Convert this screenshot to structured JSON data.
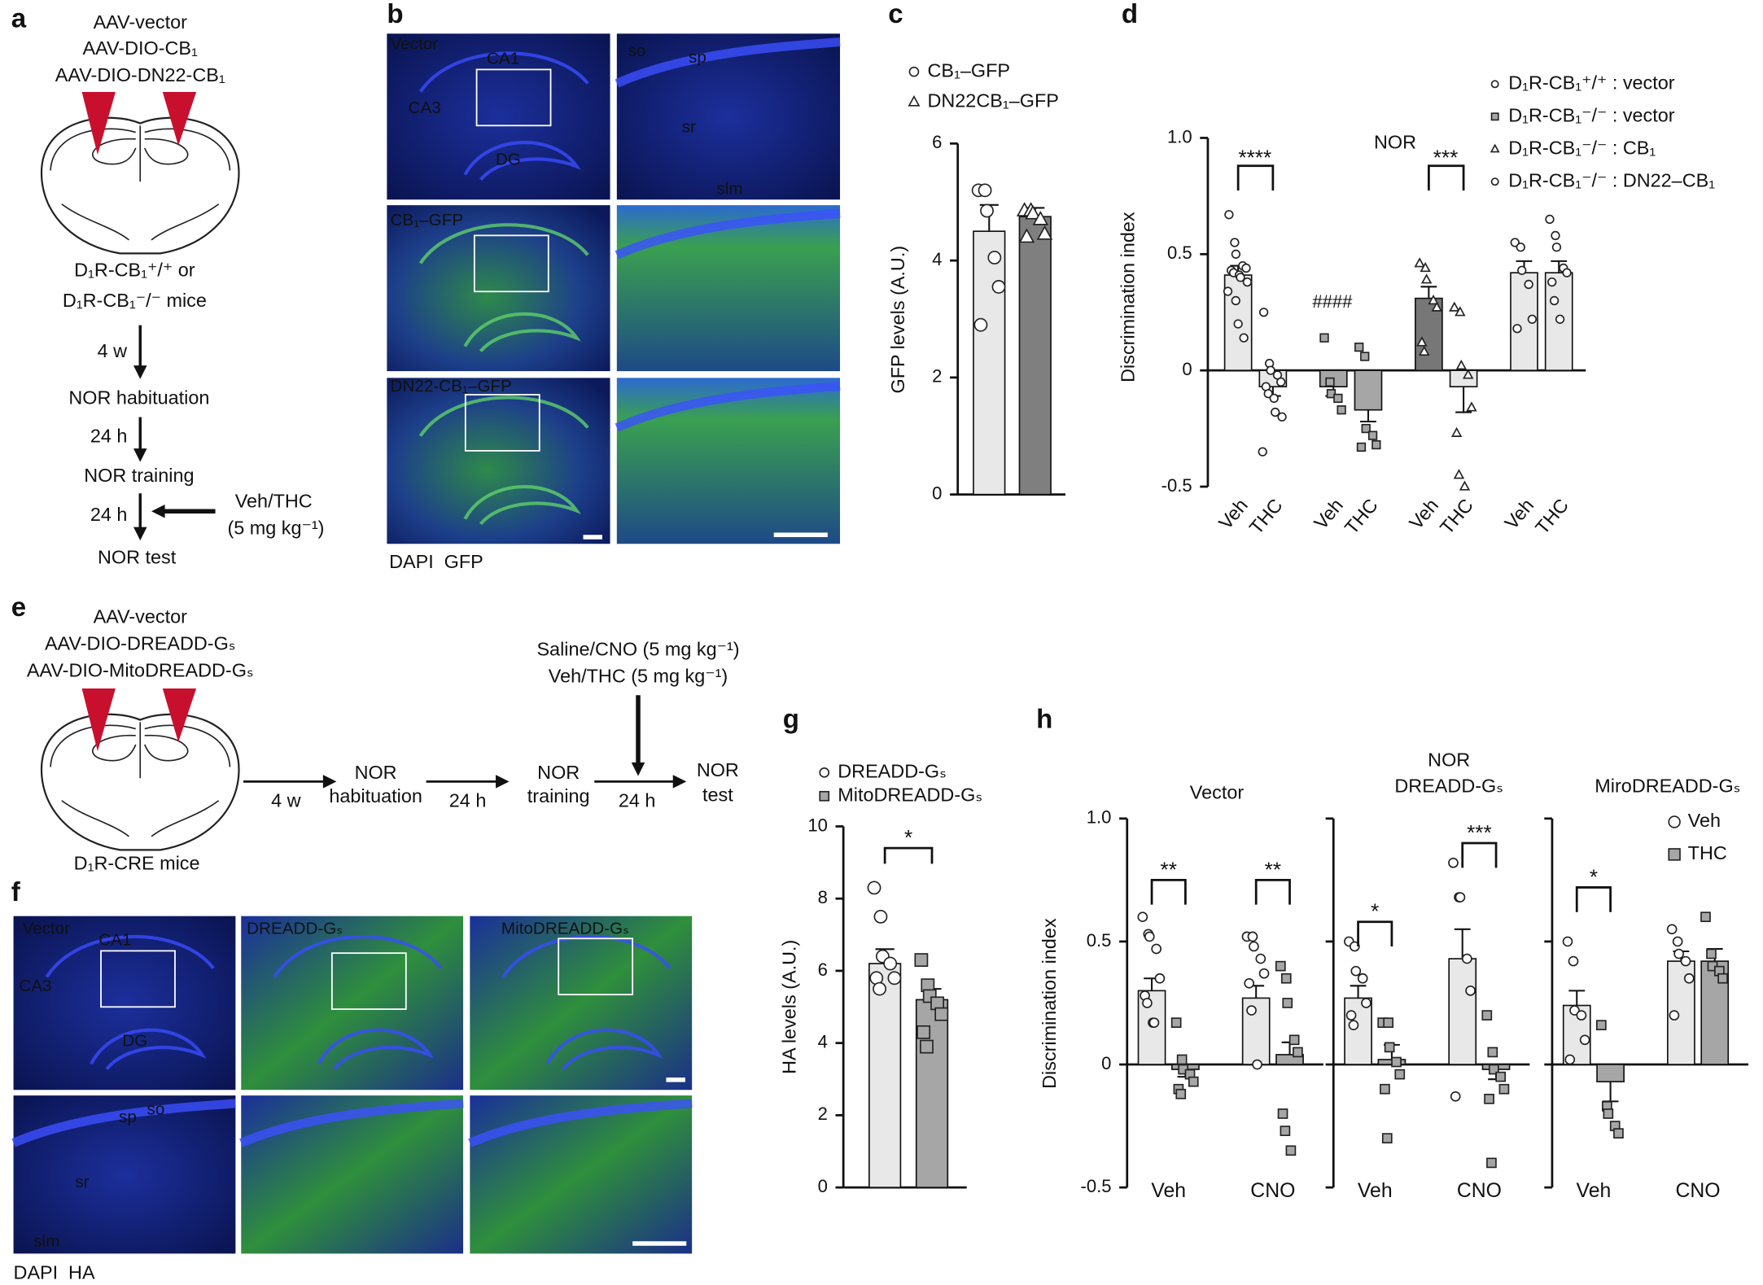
{
  "figure": {
    "panel_labels": [
      "a",
      "b",
      "c",
      "d",
      "e",
      "f",
      "g",
      "h"
    ],
    "a": {
      "vectors": [
        "AAV-vector",
        "AAV-DIO-CB₁",
        "AAV-DIO-DN22-CB₁"
      ],
      "mice": [
        "D₁R-CB₁⁺/⁺ or",
        "D₁R-CB₁⁻/⁻ mice"
      ],
      "steps": [
        "NOR habituation",
        "NOR training",
        "NOR test"
      ],
      "intervals": [
        "4 w",
        "24 h",
        "24 h"
      ],
      "treatment": [
        "Veh/THC",
        "(5 mg kg⁻¹)"
      ]
    },
    "b": {
      "labels": [
        "Vector",
        "CA1",
        "CA3",
        "DG",
        "so",
        "sp",
        "sr",
        "slm",
        "CB₁–GFP",
        "DN22-CB₁–GFP"
      ],
      "stain": [
        "DAPI",
        "GFP"
      ]
    },
    "e": {
      "vectors": [
        "AAV-vector",
        "AAV-DIO-DREADD-Gₛ",
        "AAV-DIO-MitoDREADD-Gₛ"
      ],
      "mice": "D₁R-CRE mice",
      "treatment": [
        "Saline/CNO (5 mg kg⁻¹)",
        "Veh/THC (5 mg kg⁻¹)"
      ],
      "steps": [
        [
          "NOR",
          "habituation"
        ],
        [
          "NOR",
          "training"
        ],
        [
          "NOR",
          "test"
        ]
      ],
      "intervals": [
        "4 w",
        "24 h",
        "24 h"
      ]
    },
    "f": {
      "labels": [
        "Vector",
        "CA1",
        "CA3",
        "DG",
        "DREADD-Gₛ",
        "MitoDREADD-Gₛ",
        "sp",
        "so",
        "sr",
        "slm"
      ],
      "stain": [
        "DAPI",
        "HA"
      ]
    }
  },
  "chart_data": [
    {
      "type": "bar",
      "ylabel": "GFP levels (A.U.)",
      "ylim": [
        0,
        6
      ],
      "yticks": [
        0,
        2,
        4,
        6
      ],
      "legend": true,
      "series": [
        {
          "name": "CB₁–GFP",
          "marker": "circle",
          "marker_color": "#ffffff",
          "colors": [
            "#e8e8e8"
          ],
          "values": [
            4.5
          ],
          "errors": [
            0.45
          ],
          "points": [
            [
              5.2,
              5.2,
              4.85,
              4.05,
              3.55,
              2.9
            ]
          ]
        },
        {
          "name": "DN22CB₁–GFP",
          "marker": "triangle",
          "marker_color": "#ffffff",
          "colors": [
            "#7f7f7f"
          ],
          "values": [
            4.75
          ],
          "errors": [
            0.15
          ],
          "points": [
            [
              4.85,
              4.85,
              4.8,
              4.7,
              4.45,
              4.4
            ]
          ]
        }
      ]
    },
    {
      "type": "bar",
      "title": "NOR",
      "ylabel": "Discrimination index",
      "ylim": [
        -0.5,
        1.0
      ],
      "yticks": [
        -0.5,
        0,
        0.5,
        {
          "value": 1.0,
          "label": "1.0"
        }
      ],
      "legend": true,
      "categories": [
        "Veh",
        "THC"
      ],
      "annotations": [
        "****",
        "***",
        "####"
      ],
      "series": [
        {
          "name": "D₁R-CB₁⁺/⁺ : vector",
          "marker": "circle",
          "marker_color": "#ffffff",
          "colors": [
            "#e8e8e8",
            "#e8e8e8"
          ],
          "values": [
            0.41,
            -0.07
          ],
          "errors": [
            0.04,
            0.04
          ],
          "points": [
            [
              0.67,
              0.55,
              0.5,
              0.45,
              0.44,
              0.43,
              0.42,
              0.41,
              0.4,
              0.38,
              0.34,
              0.3,
              0.2,
              0.14
            ],
            [
              0.25,
              0.03,
              0.0,
              -0.02,
              -0.05,
              -0.07,
              -0.1,
              -0.12,
              -0.18,
              -0.2,
              -0.35
            ]
          ]
        },
        {
          "name": "D₁R-CB₁⁻/⁻ : vector",
          "marker": "square",
          "marker_color": "#a6a6a6",
          "colors": [
            "#a6a6a6",
            "#a6a6a6"
          ],
          "values": [
            -0.07,
            -0.17
          ],
          "errors": [
            0.04,
            0.05
          ],
          "points": [
            [
              0.14,
              -0.05,
              -0.1,
              -0.12,
              -0.17
            ],
            [
              0.1,
              0.06,
              -0.25,
              -0.28,
              -0.32,
              -0.33
            ]
          ]
        },
        {
          "name": "D₁R-CB₁⁻/⁻ : CB₁",
          "marker": "triangle",
          "marker_color": "#ffffff",
          "colors": [
            "#777777",
            "#e8e8e8"
          ],
          "values": [
            0.31,
            -0.07
          ],
          "errors": [
            0.05,
            0.11
          ],
          "points": [
            [
              0.46,
              0.44,
              0.39,
              0.3,
              0.27,
              0.12,
              0.08
            ],
            [
              0.27,
              0.25,
              0.02,
              -0.02,
              -0.16,
              -0.27,
              -0.45,
              -0.5
            ]
          ]
        },
        {
          "name": "D₁R-CB₁⁻/⁻ : DN22–CB₁",
          "marker": "circle",
          "marker_color": "#ffffff",
          "colors": [
            "#e8e8e8",
            "#e8e8e8"
          ],
          "values": [
            0.42,
            0.42
          ],
          "errors": [
            0.05,
            0.05
          ],
          "points": [
            [
              0.55,
              0.53,
              0.43,
              0.37,
              0.22,
              0.18
            ],
            [
              0.65,
              0.58,
              0.53,
              0.44,
              0.42,
              0.38,
              0.3,
              0.22
            ]
          ]
        }
      ]
    },
    {
      "type": "bar",
      "ylabel": "HA levels (A.U.)",
      "ylim": [
        0,
        10
      ],
      "yticks": [
        0,
        2,
        4,
        6,
        8,
        10
      ],
      "legend": true,
      "annotations": [
        "*"
      ],
      "series": [
        {
          "name": "DREADD-Gₛ",
          "marker": "circle",
          "marker_color": "#ffffff",
          "colors": [
            "#e8e8e8"
          ],
          "values": [
            6.2
          ],
          "errors": [
            0.4
          ],
          "points": [
            [
              8.3,
              7.5,
              6.4,
              6.2,
              5.8,
              5.8,
              5.5
            ]
          ]
        },
        {
          "name": "MitoDREADD-Gₛ",
          "marker": "square",
          "marker_color": "#a6a6a6",
          "colors": [
            "#a6a6a6"
          ],
          "values": [
            5.2
          ],
          "errors": [
            0.3
          ],
          "points": [
            [
              6.3,
              5.6,
              5.3,
              5.1,
              4.8,
              4.3,
              3.9
            ]
          ]
        }
      ]
    },
    {
      "type": "bar",
      "title": "Vector",
      "ylabel": "Discrimination index",
      "ylim": [
        -0.5,
        1.0
      ],
      "yticks": [
        -0.5,
        0,
        0.5,
        {
          "value": 1.0,
          "label": "1.0"
        }
      ],
      "legend": false,
      "show_tick_labels": true,
      "categories": [
        "Veh",
        "CNO"
      ],
      "annotations": [
        "**",
        "**"
      ],
      "series": [
        {
          "name": "Veh",
          "marker": "circle",
          "marker_color": "#ffffff",
          "colors": [
            "#e8e8e8",
            "#e8e8e8"
          ],
          "values": [
            0.3,
            0.27
          ],
          "errors": [
            0.05,
            0.05
          ],
          "points": [
            [
              0.6,
              0.53,
              0.52,
              0.47,
              0.35,
              0.28,
              0.25,
              0.17,
              0.17
            ],
            [
              0.52,
              0.52,
              0.48,
              0.43,
              0.37,
              0.33,
              0.22,
              0.0
            ]
          ]
        },
        {
          "name": "THC",
          "marker": "square",
          "marker_color": "#a6a6a6",
          "colors": [
            "#a6a6a6",
            "#a6a6a6"
          ],
          "values": [
            -0.02,
            0.04
          ],
          "errors": [
            0.03,
            0.05
          ],
          "points": [
            [
              0.17,
              0.02,
              -0.02,
              -0.04,
              -0.07,
              -0.1,
              -0.12
            ],
            [
              0.4,
              0.35,
              0.25,
              0.1,
              0.05,
              -0.2,
              -0.27,
              -0.35
            ]
          ]
        }
      ]
    },
    {
      "type": "bar",
      "supertitle": "NOR",
      "title": "DREADD-Gₛ",
      "ylim": [
        -0.5,
        1.0
      ],
      "yticks": [
        -0.5,
        0,
        0.5,
        {
          "value": 1.0,
          "label": "1.0"
        }
      ],
      "legend": false,
      "show_tick_labels": false,
      "categories": [
        "Veh",
        "CNO"
      ],
      "annotations": [
        "*",
        "***"
      ],
      "series": [
        {
          "name": "Veh",
          "marker": "circle",
          "marker_color": "#ffffff",
          "colors": [
            "#e8e8e8",
            "#e8e8e8"
          ],
          "values": [
            0.27,
            0.43
          ],
          "errors": [
            0.05,
            0.12
          ],
          "points": [
            [
              0.5,
              0.48,
              0.38,
              0.35,
              0.25,
              0.2,
              0.16
            ],
            [
              0.82,
              0.68,
              0.68,
              0.43,
              0.3,
              -0.13
            ]
          ]
        },
        {
          "name": "THC",
          "marker": "square",
          "marker_color": "#a6a6a6",
          "colors": [
            "#a6a6a6",
            "#a6a6a6"
          ],
          "values": [
            0.02,
            -0.02
          ],
          "errors": [
            0.06,
            0.04
          ],
          "points": [
            [
              0.17,
              0.17,
              0.07,
              0.01,
              -0.04,
              -0.1,
              -0.3
            ],
            [
              0.2,
              0.05,
              -0.02,
              -0.05,
              -0.1,
              -0.14,
              -0.4
            ]
          ]
        }
      ]
    },
    {
      "type": "bar",
      "title": "MiroDREADD-Gₛ",
      "ylim": [
        -0.5,
        1.0
      ],
      "yticks": [
        -0.5,
        0,
        0.5,
        {
          "value": 1.0,
          "label": "1.0"
        }
      ],
      "legend": true,
      "show_tick_labels": false,
      "categories": [
        "Veh",
        "CNO"
      ],
      "annotations": [
        "*"
      ],
      "series": [
        {
          "name": "Veh",
          "marker": "circle",
          "marker_color": "#ffffff",
          "colors": [
            "#e8e8e8",
            "#e8e8e8"
          ],
          "values": [
            0.24,
            0.42
          ],
          "errors": [
            0.06,
            0.04
          ],
          "points": [
            [
              0.5,
              0.42,
              0.22,
              0.2,
              0.1,
              0.02
            ],
            [
              0.55,
              0.5,
              0.45,
              0.42,
              0.35,
              0.2
            ]
          ]
        },
        {
          "name": "THC",
          "marker": "square",
          "marker_color": "#a6a6a6",
          "colors": [
            "#a6a6a6",
            "#a6a6a6"
          ],
          "values": [
            -0.07,
            0.42
          ],
          "errors": [
            0.08,
            0.05
          ],
          "points": [
            [
              0.16,
              -0.17,
              -0.2,
              -0.25,
              -0.28
            ],
            [
              0.6,
              0.45,
              0.4,
              0.38,
              0.35
            ]
          ]
        }
      ]
    }
  ]
}
